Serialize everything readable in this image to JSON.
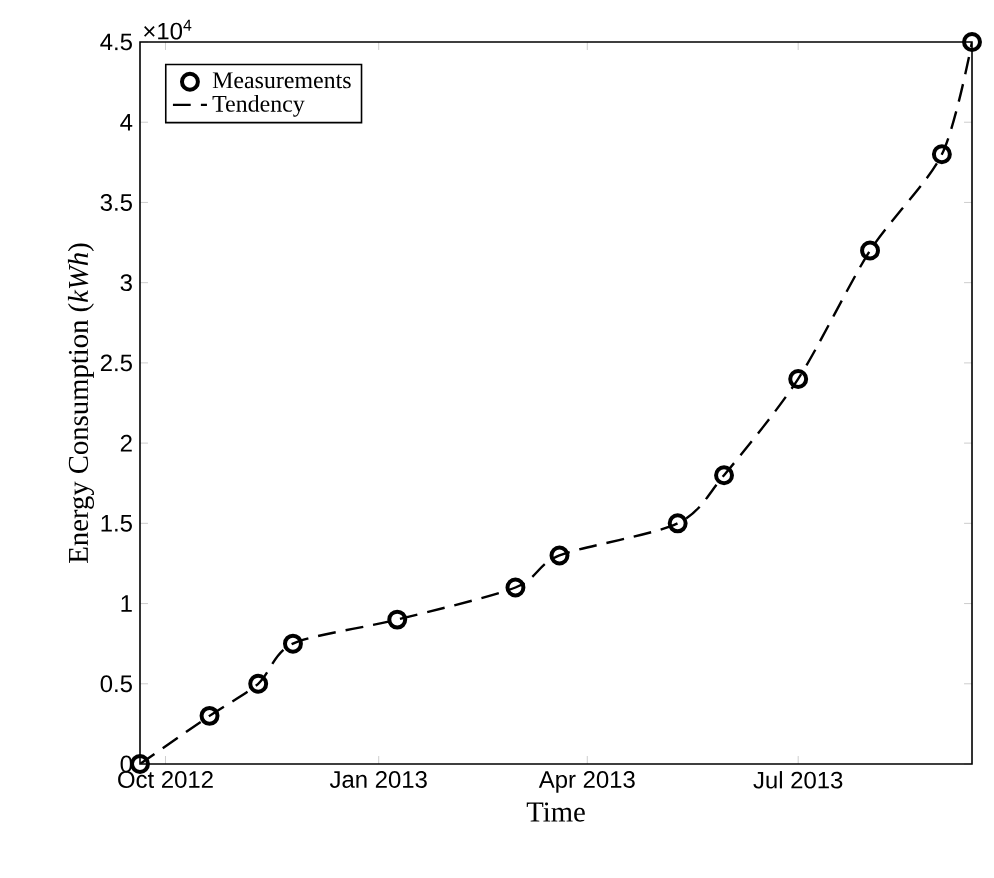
{
  "chart_data": {
    "type": "scatter",
    "xlabel": "Time",
    "ylabel": "Energy Consumption (*kWh*)",
    "annotations": [
      "×10$^{4}$"
    ],
    "x": [
      "2012-09-20",
      "2012-10-20",
      "2012-11-10",
      "2012-11-25",
      "2013-01-09",
      "2013-03-01",
      "2013-03-20",
      "2013-05-10",
      "2013-05-30",
      "2013-07-01",
      "2013-08-01",
      "2013-09-01",
      "2013-09-14"
    ],
    "series": [
      {
        "name": "Measurements",
        "marker": "circle",
        "color": "#000000",
        "values": [
          0,
          0.3,
          0.5,
          0.75,
          0.9,
          1.1,
          1.3,
          1.5,
          1.8,
          2.4,
          3.2,
          3.8,
          4.5
        ]
      },
      {
        "name": "Tendency",
        "type": "line",
        "line_style": "dashed",
        "color": "#000000",
        "values": [
          0,
          0.3,
          0.5,
          0.75,
          0.9,
          1.1,
          1.3,
          1.5,
          1.8,
          2.4,
          3.2,
          3.8,
          4.5
        ]
      }
    ],
    "xlim": [
      "2012-09-20",
      "2013-09-14"
    ],
    "xticks": [
      {
        "value": "2012-10-01",
        "label": "Oct 2012"
      },
      {
        "value": "2013-01-01",
        "label": "Jan 2013"
      },
      {
        "value": "2013-04-01",
        "label": "Apr 2013"
      },
      {
        "value": "2013-07-01",
        "label": "Jul 2013"
      }
    ],
    "ylim": [
      0,
      4.5
    ],
    "yticks": [
      0,
      0.5,
      1,
      1.5,
      2,
      2.5,
      3,
      3.5,
      4,
      4.5
    ],
    "grid": false,
    "legend": "top left"
  }
}
